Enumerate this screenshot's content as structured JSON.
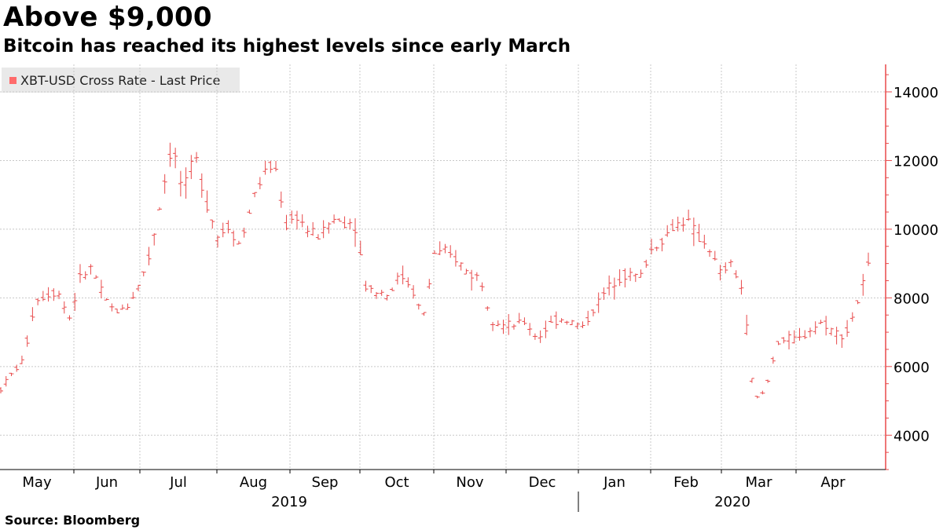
{
  "header": {
    "title": "Above $9,000",
    "subtitle": "Bitcoin has reached its highest levels since early March"
  },
  "footer": {
    "source": "Source: Bloomberg"
  },
  "colors": {
    "series": "#e8494a",
    "legend_swatch": "#ff6b6b",
    "grid": "#c8c8c8",
    "axis": "#e8494a"
  },
  "chart_data": {
    "type": "ohlc",
    "title": "Above $9,000",
    "subtitle": "Bitcoin has reached its highest levels since early March",
    "legend": {
      "entries": [
        "XBT-USD Cross Rate - Last Price"
      ],
      "placement": "top-left"
    },
    "y_axis": {
      "position": "right",
      "ticks": [
        4000,
        6000,
        8000,
        10000,
        12000,
        14000
      ],
      "ylim": [
        3000,
        14800
      ]
    },
    "x_axis": {
      "months": [
        "May",
        "Jun",
        "Jul",
        "Aug",
        "Sep",
        "Oct",
        "Nov",
        "Dec",
        "Jan",
        "Feb",
        "Mar",
        "Apr"
      ],
      "years": [
        "2019",
        "2020"
      ],
      "range": [
        "2019-05-01",
        "2020-04-30"
      ]
    },
    "grid": true,
    "series": [
      {
        "name": "XBT-USD Cross Rate - Last Price",
        "weekly_closes": [
          5350,
          5800,
          6200,
          7900,
          8100,
          8200,
          7400,
          8600,
          8900,
          8000,
          7600,
          7700,
          8300,
          9200,
          10800,
          12500,
          11000,
          12200,
          10800,
          9800,
          10100,
          9500,
          10800,
          11600,
          11900,
          10100,
          10400,
          9900,
          9800,
          10300,
          10200,
          10200,
          8300,
          8200,
          8100,
          8700,
          8300,
          7400,
          9300,
          9300,
          9100,
          8700,
          8600,
          7400,
          7200,
          7200,
          7300,
          6800,
          7200,
          7400,
          7300,
          7150,
          7700,
          8200,
          8600,
          8700,
          8600,
          9400,
          9700,
          10100,
          10300,
          9800,
          9500,
          8700,
          9000,
          8200,
          5000,
          5300,
          6700,
          6800,
          6800,
          7100,
          7300,
          7000,
          6900,
          7800,
          8900
        ]
      }
    ],
    "annotations": []
  }
}
